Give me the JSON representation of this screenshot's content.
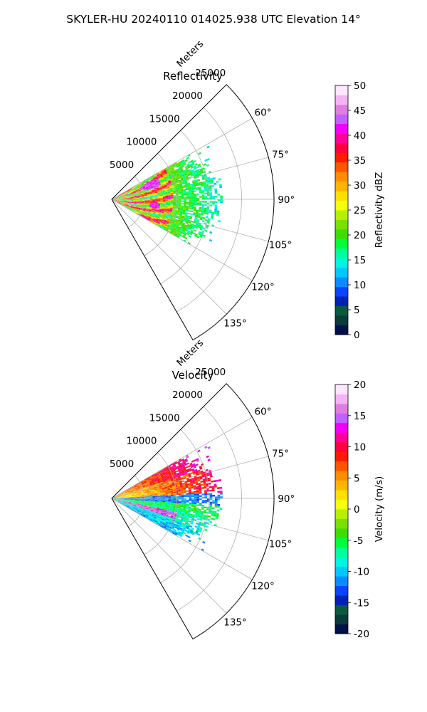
{
  "suptitle": "SKYLER-HU  20240110  014025.938 UTC Elevation 14°",
  "chart_data": [
    {
      "type": "heatmap",
      "title": "Reflectivity",
      "projection": "polar-sector",
      "azimuth_range_deg": [
        45,
        150
      ],
      "azimuth_ticks": [
        "60°",
        "75°",
        "90°",
        "105°",
        "120°",
        "135°"
      ],
      "range_label": "Meters",
      "range_ticks": [
        "5000",
        "10000",
        "15000",
        "20000",
        "25000"
      ],
      "range_max_m": 25000,
      "grid": true,
      "data_extent": {
        "azimuth_deg": [
          60,
          120
        ],
        "range_m": [
          0,
          17000
        ]
      },
      "colorbar": {
        "label": "Reflectivity dBZ",
        "vmin": 0,
        "vmax": 50,
        "ticks": [
          "0",
          "5",
          "10",
          "15",
          "20",
          "25",
          "30",
          "35",
          "40",
          "45",
          "50"
        ],
        "colors": [
          "#00104a",
          "#0a3a3a",
          "#0b5a3f",
          "#0022b4",
          "#0a44ff",
          "#0a8cff",
          "#00c8ff",
          "#00f5e0",
          "#00ff9a",
          "#00ff3a",
          "#3fdc00",
          "#7ae000",
          "#b6f000",
          "#f2ff10",
          "#ffe000",
          "#ffb400",
          "#ff8c00",
          "#ff5500",
          "#ff1a00",
          "#ff0040",
          "#ff0098",
          "#f000f8",
          "#c060ff",
          "#e07ee0",
          "#f4b4f4",
          "#ffe6ff"
        ]
      },
      "observations": [
        {
          "feature": "near-range core",
          "range_m": [
            0,
            9000
          ],
          "dbz": [
            25,
            40
          ]
        },
        {
          "feature": "maxima",
          "range_m": [
            5000,
            8000
          ],
          "dbz": [
            40,
            45
          ]
        },
        {
          "feature": "outer echo",
          "range_m": [
            10000,
            17000
          ],
          "dbz": [
            15,
            25
          ]
        }
      ]
    },
    {
      "type": "heatmap",
      "title": "Velocity",
      "projection": "polar-sector",
      "azimuth_range_deg": [
        45,
        150
      ],
      "azimuth_ticks": [
        "60°",
        "75°",
        "90°",
        "105°",
        "120°",
        "135°"
      ],
      "range_label": "Meters",
      "range_ticks": [
        "5000",
        "10000",
        "15000",
        "20000",
        "25000"
      ],
      "range_max_m": 25000,
      "grid": true,
      "data_extent": {
        "azimuth_deg": [
          60,
          120
        ],
        "range_m": [
          0,
          17000
        ]
      },
      "colorbar": {
        "label": "Velocity (m/s)",
        "vmin": -20,
        "vmax": 20,
        "ticks": [
          "-20",
          "-15",
          "-10",
          "-5",
          "0",
          "5",
          "10",
          "15",
          "20"
        ],
        "colors": [
          "#00104a",
          "#0a3a3a",
          "#0b5a3f",
          "#0022b4",
          "#0a44ff",
          "#0a8cff",
          "#00c8ff",
          "#00f5e0",
          "#00ff9a",
          "#00ff3a",
          "#3fdc00",
          "#7ae000",
          "#b6f000",
          "#f2ff10",
          "#ffe000",
          "#ffb400",
          "#ff8c00",
          "#ff5500",
          "#ff1a00",
          "#ff0040",
          "#ff0098",
          "#f000f8",
          "#c060ff",
          "#e07ee0",
          "#f4b4f4",
          "#ffe6ff"
        ]
      },
      "observations": [
        {
          "feature": "negative velocity band",
          "azimuth_deg": [
            86,
            94
          ],
          "velocity_ms": [
            -12,
            -8
          ]
        },
        {
          "feature": "positive region",
          "azimuth_deg": [
            62,
            84
          ],
          "velocity_ms": [
            0,
            12
          ]
        },
        {
          "feature": "negative region",
          "azimuth_deg": [
            100,
            118
          ],
          "velocity_ms": [
            -12,
            -4
          ]
        },
        {
          "feature": "outer fringe",
          "azimuth_deg": [
            62,
            70
          ],
          "velocity_ms": [
            12,
            18
          ]
        }
      ]
    }
  ]
}
